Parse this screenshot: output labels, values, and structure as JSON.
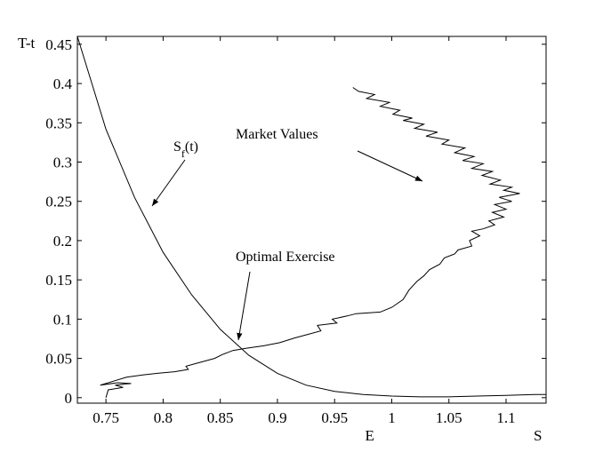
{
  "chart_data": {
    "type": "line",
    "xlabel": "S",
    "ylabel": "T-t",
    "xlim": [
      0.725,
      1.135
    ],
    "ylim": [
      -0.007,
      0.46
    ],
    "x_ticks": [
      "0.75",
      "0.8",
      "0.85",
      "0.9",
      "0.95",
      "1",
      "1.05",
      "1.1"
    ],
    "y_ticks": [
      "0",
      "0.05",
      "0.1",
      "0.15",
      "0.2",
      "0.25",
      "0.3",
      "0.35",
      "0.4",
      "0.45"
    ],
    "extra_x_label": {
      "text": "E",
      "x": 1.0
    },
    "annotations": [
      {
        "text": "Market Values",
        "sub": "",
        "tail": null,
        "head": null
      },
      {
        "text": "S",
        "sub": "f",
        "suffix": "(t)",
        "tail": null,
        "head": null
      },
      {
        "text": "Optimal Exercise",
        "sub": "",
        "tail": null,
        "head": null
      }
    ],
    "series": [
      {
        "x": [
          0.725,
          0.75,
          0.775,
          0.8,
          0.825,
          0.85,
          0.875,
          0.9,
          0.925,
          0.95,
          0.975,
          1.0,
          1.025,
          1.05,
          1.075,
          1.1,
          1.125,
          1.135
        ],
        "y": [
          0.46,
          0.342,
          0.255,
          0.185,
          0.131,
          0.087,
          0.054,
          0.031,
          0.016,
          0.008,
          0.004,
          0.002,
          0.001,
          0.001,
          0.002,
          0.003,
          0.004,
          0.004
        ]
      },
      {
        "x": [
          0.75,
          0.752,
          0.765,
          0.758,
          0.772,
          0.76,
          0.745,
          0.768,
          0.782,
          0.795,
          0.81,
          0.822,
          0.82,
          0.83,
          0.845,
          0.852,
          0.861,
          0.873,
          0.888,
          0.902,
          0.915,
          0.925,
          0.938,
          0.935,
          0.952,
          0.948,
          0.961,
          0.969,
          0.99,
          1.0,
          1.01,
          1.015,
          1.022,
          1.028,
          1.033,
          1.042,
          1.046,
          1.055,
          1.058,
          1.07,
          1.068,
          1.077,
          1.07,
          1.08,
          1.09,
          1.085,
          1.098,
          1.088,
          1.1,
          1.09,
          1.105,
          1.094,
          1.112,
          1.098,
          1.105,
          1.086,
          1.095,
          1.079,
          1.088,
          1.07,
          1.08,
          1.062,
          1.072,
          1.055,
          1.064,
          1.044,
          1.05,
          1.03,
          1.04,
          1.02,
          1.028,
          1.01,
          1.018,
          1.001,
          1.007,
          0.99,
          0.998,
          0.978,
          0.985,
          0.971,
          0.966
        ],
        "y": [
          0.0,
          0.01,
          0.013,
          0.016,
          0.018,
          0.019,
          0.016,
          0.026,
          0.029,
          0.031,
          0.033,
          0.036,
          0.04,
          0.044,
          0.05,
          0.055,
          0.06,
          0.063,
          0.066,
          0.07,
          0.076,
          0.08,
          0.085,
          0.092,
          0.095,
          0.1,
          0.104,
          0.107,
          0.109,
          0.115,
          0.125,
          0.137,
          0.148,
          0.155,
          0.163,
          0.17,
          0.178,
          0.183,
          0.188,
          0.193,
          0.2,
          0.206,
          0.212,
          0.215,
          0.22,
          0.225,
          0.23,
          0.236,
          0.24,
          0.246,
          0.25,
          0.255,
          0.26,
          0.264,
          0.268,
          0.272,
          0.277,
          0.283,
          0.288,
          0.292,
          0.298,
          0.302,
          0.307,
          0.312,
          0.318,
          0.323,
          0.328,
          0.333,
          0.338,
          0.343,
          0.348,
          0.353,
          0.356,
          0.361,
          0.366,
          0.371,
          0.376,
          0.381,
          0.386,
          0.39,
          0.395
        ]
      }
    ]
  }
}
